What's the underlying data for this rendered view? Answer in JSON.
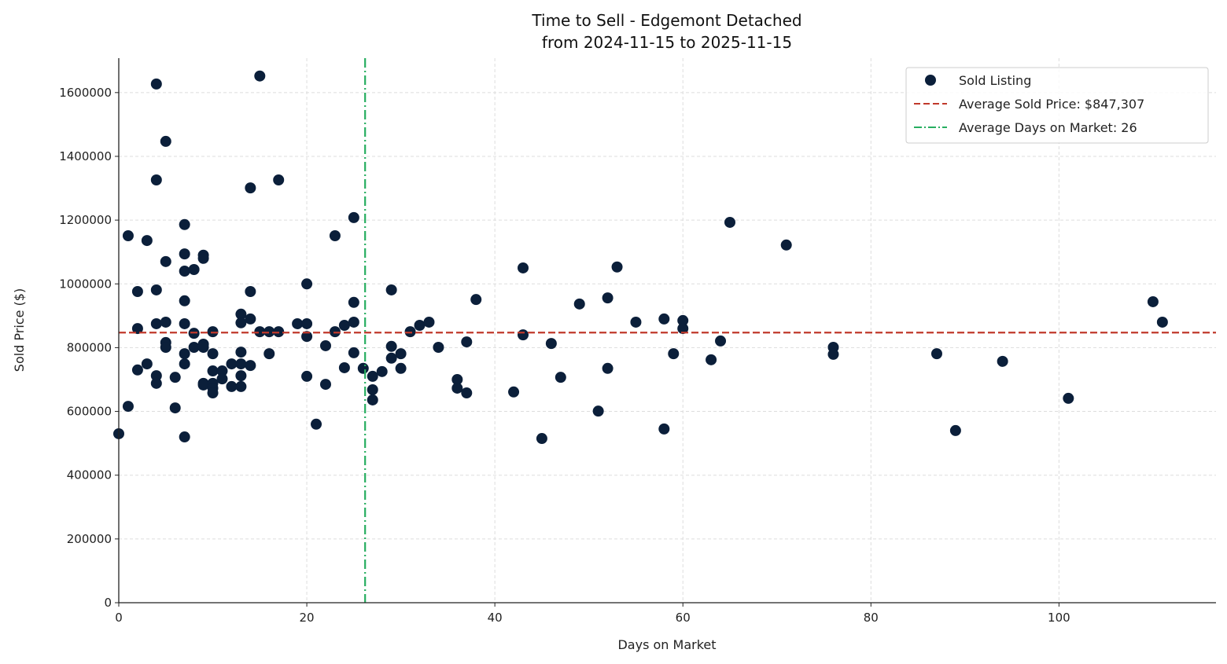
{
  "chart_data": {
    "type": "scatter",
    "title": "Time to Sell - Edgemont Detached",
    "subtitle": "from 2024-11-15 to 2025-11-15",
    "xlabel": "Days on Market",
    "ylabel": "Sold Price ($)",
    "xlim": [
      0,
      116.7
    ],
    "ylim": [
      0,
      1708000
    ],
    "xticks": [
      0,
      20,
      40,
      60,
      80,
      100
    ],
    "yticks": [
      0,
      200000,
      400000,
      600000,
      800000,
      1000000,
      1200000,
      1400000,
      1600000
    ],
    "grid": true,
    "legend_placement": "top-right",
    "colors": {
      "points": "#0b1f3a",
      "avg_price": "#c0392b",
      "avg_days": "#27ae60"
    },
    "legend": [
      "Sold Listing",
      "Average Sold Price: $847,307",
      "Average Days on Market: 26"
    ],
    "avg_price": 847307,
    "avg_days": 26.2,
    "points": [
      [
        0,
        530000
      ],
      [
        1,
        1151000
      ],
      [
        1,
        616000
      ],
      [
        2,
        976000
      ],
      [
        2,
        860000
      ],
      [
        2,
        730000
      ],
      [
        3,
        1136000
      ],
      [
        3,
        749000
      ],
      [
        4,
        1627000
      ],
      [
        4,
        1326000
      ],
      [
        4,
        981000
      ],
      [
        4,
        875000
      ],
      [
        4,
        712000
      ],
      [
        4,
        688000
      ],
      [
        5,
        1447000
      ],
      [
        5,
        1070000
      ],
      [
        5,
        880000
      ],
      [
        5,
        816000
      ],
      [
        5,
        801000
      ],
      [
        6,
        707000
      ],
      [
        6,
        611000
      ],
      [
        7,
        1186000
      ],
      [
        7,
        1094000
      ],
      [
        7,
        1040000
      ],
      [
        7,
        947000
      ],
      [
        7,
        875000
      ],
      [
        7,
        781000
      ],
      [
        7,
        749000
      ],
      [
        7,
        520000
      ],
      [
        8,
        1045000
      ],
      [
        8,
        845000
      ],
      [
        8,
        801000
      ],
      [
        9,
        1090000
      ],
      [
        9,
        1080000
      ],
      [
        9,
        811000
      ],
      [
        9,
        801000
      ],
      [
        9,
        688000
      ],
      [
        9,
        683000
      ],
      [
        10,
        850000
      ],
      [
        10,
        781000
      ],
      [
        10,
        727000
      ],
      [
        10,
        688000
      ],
      [
        10,
        673000
      ],
      [
        10,
        658000
      ],
      [
        11,
        727000
      ],
      [
        11,
        702000
      ],
      [
        12,
        749000
      ],
      [
        12,
        678000
      ],
      [
        13,
        905000
      ],
      [
        13,
        878000
      ],
      [
        13,
        786000
      ],
      [
        13,
        749000
      ],
      [
        13,
        712000
      ],
      [
        13,
        678000
      ],
      [
        14,
        1301000
      ],
      [
        14,
        976000
      ],
      [
        14,
        890000
      ],
      [
        14,
        744000
      ],
      [
        15,
        1652000
      ],
      [
        15,
        850000
      ],
      [
        16,
        850000
      ],
      [
        16,
        781000
      ],
      [
        17,
        1326000
      ],
      [
        17,
        850000
      ],
      [
        19,
        875000
      ],
      [
        20,
        1000000
      ],
      [
        20,
        875000
      ],
      [
        20,
        835000
      ],
      [
        20,
        710000
      ],
      [
        21,
        560000
      ],
      [
        22,
        806000
      ],
      [
        22,
        685000
      ],
      [
        23,
        1151000
      ],
      [
        23,
        850000
      ],
      [
        24,
        870000
      ],
      [
        24,
        737000
      ],
      [
        25,
        1208000
      ],
      [
        25,
        942000
      ],
      [
        25,
        880000
      ],
      [
        25,
        784000
      ],
      [
        26,
        735000
      ],
      [
        27,
        710000
      ],
      [
        27,
        668000
      ],
      [
        27,
        636000
      ],
      [
        28,
        725000
      ],
      [
        29,
        981000
      ],
      [
        29,
        804000
      ],
      [
        29,
        767000
      ],
      [
        30,
        781000
      ],
      [
        30,
        735000
      ],
      [
        31,
        850000
      ],
      [
        32,
        870000
      ],
      [
        33,
        880000
      ],
      [
        34,
        801000
      ],
      [
        36,
        700000
      ],
      [
        36,
        673000
      ],
      [
        37,
        818000
      ],
      [
        37,
        658000
      ],
      [
        38,
        951000
      ],
      [
        42,
        661000
      ],
      [
        43,
        1050000
      ],
      [
        43,
        840000
      ],
      [
        45,
        515000
      ],
      [
        46,
        813000
      ],
      [
        47,
        707000
      ],
      [
        49,
        937000
      ],
      [
        51,
        601000
      ],
      [
        52,
        956000
      ],
      [
        52,
        735000
      ],
      [
        53,
        1053000
      ],
      [
        55,
        880000
      ],
      [
        58,
        890000
      ],
      [
        58,
        545000
      ],
      [
        59,
        781000
      ],
      [
        60,
        885000
      ],
      [
        60,
        860000
      ],
      [
        63,
        762000
      ],
      [
        64,
        821000
      ],
      [
        65,
        1193000
      ],
      [
        71,
        1122000
      ],
      [
        76,
        801000
      ],
      [
        76,
        779000
      ],
      [
        87,
        781000
      ],
      [
        89,
        540000
      ],
      [
        94,
        757000
      ],
      [
        101,
        641000
      ],
      [
        110,
        944000
      ],
      [
        111,
        880000
      ]
    ]
  }
}
